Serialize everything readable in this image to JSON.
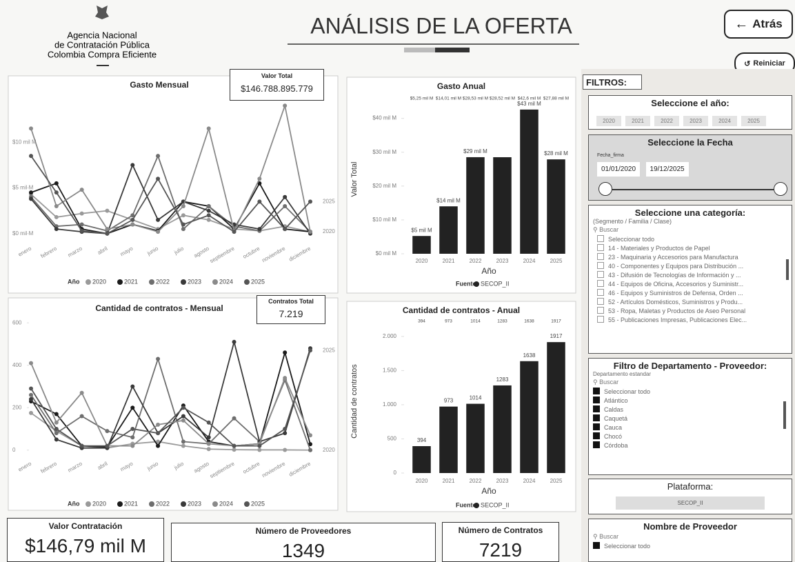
{
  "header": {
    "org_lines": [
      "Agencia Nacional",
      "de Contratación Pública",
      "Colombia Compra Eficiente"
    ],
    "title": "ANÁLISIS DE LA OFERTA",
    "back_button": "Atrás",
    "reset_button": "Reiniciar"
  },
  "kpis": {
    "valor_total": {
      "label": "Valor Total",
      "value": "$146.788.895.779"
    },
    "contratos_total": {
      "label": "Contratos Total",
      "value": "7.219"
    },
    "valor_contratacion": {
      "label": "Valor Contratación",
      "value": "$146,79 mil M"
    },
    "proveedores": {
      "label": "Número de Proveedores",
      "value": "1349"
    },
    "contratos": {
      "label": "Número de Contratos",
      "value": "7219"
    }
  },
  "filters": {
    "title": "FILTROS:",
    "year": {
      "title": "Seleccione el año:",
      "options": [
        "2020",
        "2021",
        "2022",
        "2023",
        "2024",
        "2025"
      ]
    },
    "date": {
      "title": "Seleccione la Fecha",
      "field": "Fecha_firma",
      "start": "01/01/2020",
      "end": "19/12/2025"
    },
    "category": {
      "title": "Seleccione una categoría:",
      "subtitle": "(Segmento / Familia / Clase)",
      "search": "Buscar",
      "items": [
        "Seleccionar todo",
        "14 - Materiales y Productos de Papel",
        "23 - Maquinaria y Accesorios para Manufactura",
        "40 - Componentes y Equipos para Distribución ...",
        "43 - Difusión de Tecnologías de Información y ...",
        "44 - Equipos de Oficina, Accesorios y Suministr...",
        "46 - Equipos y Suministros de Defensa, Orden ...",
        "52 - Artículos Domésticos, Suministros y Produ...",
        "53 - Ropa, Maletas y Productos de Aseo Personal",
        "55 - Publicaciones Impresas, Publicaciones Elec..."
      ]
    },
    "department": {
      "title": "Filtro de Departamento - Proveedor:",
      "field": "Departamento estandar",
      "search": "Buscar",
      "items": [
        "Seleccionar todo",
        "Atlántico",
        "Caldas",
        "Caquetá",
        "Cauca",
        "Chocó",
        "Córdoba"
      ]
    },
    "platform": {
      "title": "Plataforma:",
      "options": [
        "SECOP_II"
      ]
    },
    "provider": {
      "title": "Nombre de Proveedor",
      "search": "Buscar",
      "items": [
        "Seleccionar todo"
      ]
    }
  },
  "chart_data": [
    {
      "type": "line",
      "title": "Gasto Mensual",
      "categories": [
        "enero",
        "febrero",
        "marzo",
        "abril",
        "mayo",
        "junio",
        "julio",
        "agosto",
        "septiembre",
        "octubre",
        "noviembre",
        "diciembre"
      ],
      "legend_title": "Año",
      "series": [
        {
          "name": "2020",
          "color": "#9a9a9a",
          "end_label": true,
          "values": [
            4.3,
            1.8,
            2.2,
            2.5,
            1.5,
            0.5,
            2.0,
            1.5,
            0.5,
            0.3,
            0.8,
            0.2
          ]
        },
        {
          "name": "2021",
          "color": "#1a1a1a",
          "values": [
            4.5,
            5.5,
            0.5,
            0.0,
            1.0,
            0.3,
            3.5,
            3.0,
            0.5,
            5.5,
            0.5,
            0.2
          ]
        },
        {
          "name": "2022",
          "color": "#6e6e6e",
          "values": [
            4.0,
            0.8,
            1.0,
            0.3,
            2.0,
            8.5,
            0.5,
            3.0,
            0.8,
            0.3,
            3.0,
            0.2
          ]
        },
        {
          "name": "2023",
          "color": "#3a3a3a",
          "values": [
            3.8,
            0.5,
            0.2,
            0.0,
            7.5,
            1.5,
            3.5,
            2.5,
            1.0,
            0.5,
            4.0,
            0.0
          ]
        },
        {
          "name": "2024",
          "color": "#8a8a8a",
          "values": [
            11.5,
            3.0,
            4.8,
            0.5,
            1.0,
            0.2,
            3.0,
            11.5,
            0.3,
            6.0,
            14.0,
            0.2
          ]
        },
        {
          "name": "2025",
          "color": "#555555",
          "end_label": true,
          "values": [
            8.5,
            4.5,
            0.3,
            0.0,
            1.5,
            6.0,
            1.0,
            2.0,
            0.2,
            3.5,
            0.5,
            3.5
          ]
        }
      ],
      "ylim": [
        -1,
        15
      ],
      "yticks": [
        {
          "value": 0,
          "label": "$0 mil M"
        },
        {
          "value": 5,
          "label": "$5 mil M"
        },
        {
          "value": 10,
          "label": "$10 mil M"
        }
      ]
    },
    {
      "type": "bar",
      "title": "Gasto Anual",
      "categories": [
        "2020",
        "2021",
        "2022",
        "2023",
        "2024",
        "2025"
      ],
      "x_label": "Año",
      "y_label": "Valor Total",
      "legend_title": "Fuente",
      "series": [
        {
          "name": "SECOP_II",
          "color": "#222222",
          "values": [
            5.25,
            14.01,
            28.53,
            28.52,
            42.6,
            27.88
          ],
          "value_labels": [
            "$5 mil M",
            "$14 mil M",
            "$29 mil M",
            null,
            "$43 mil M",
            "$28 mil M"
          ],
          "top_labels": [
            "$5,25 mil M",
            "$14,01 mil M",
            "$28,53 mil M",
            "$28,52 mil M",
            "$42,6 mil M",
            "$27,88 mil M"
          ]
        }
      ],
      "ylim": [
        0,
        44
      ],
      "yticks": [
        {
          "value": 0,
          "label": "$0 mil M"
        },
        {
          "value": 10,
          "label": "$10 mil M"
        },
        {
          "value": 20,
          "label": "$20 mil M"
        },
        {
          "value": 30,
          "label": "$30 mil M"
        },
        {
          "value": 40,
          "label": "$40 mil M"
        }
      ]
    },
    {
      "type": "line",
      "title": "Cantidad de contratos - Mensual",
      "categories": [
        "enero",
        "febrero",
        "marzo",
        "abril",
        "mayo",
        "junio",
        "julio",
        "agosto",
        "septiembre",
        "octubre",
        "noviembre",
        "diciembre"
      ],
      "legend_title": "Año",
      "series": [
        {
          "name": "2020",
          "color": "#9a9a9a",
          "end_label": true,
          "values": [
            175,
            90,
            20,
            10,
            30,
            40,
            20,
            5,
            2,
            1,
            1,
            0
          ]
        },
        {
          "name": "2021",
          "color": "#1a1a1a",
          "values": [
            230,
            170,
            20,
            15,
            200,
            20,
            210,
            40,
            20,
            30,
            460,
            28
          ]
        },
        {
          "name": "2022",
          "color": "#6e6e6e",
          "values": [
            260,
            80,
            160,
            90,
            60,
            430,
            40,
            30,
            150,
            40,
            330,
            0
          ]
        },
        {
          "name": "2023",
          "color": "#3a3a3a",
          "values": [
            240,
            50,
            10,
            10,
            300,
            80,
            160,
            60,
            510,
            40,
            80,
            480
          ]
        },
        {
          "name": "2024",
          "color": "#8a8a8a",
          "values": [
            410,
            130,
            270,
            20,
            20,
            120,
            140,
            30,
            20,
            30,
            340,
            70
          ]
        },
        {
          "name": "2025",
          "color": "#555555",
          "end_label": true,
          "values": [
            290,
            100,
            20,
            20,
            100,
            80,
            200,
            130,
            20,
            20,
            100,
            470
          ]
        }
      ],
      "ylim": [
        -30,
        620
      ],
      "yticks": [
        0,
        200,
        400,
        600
      ]
    },
    {
      "type": "bar",
      "title": "Cantidad de contratos - Anual",
      "categories": [
        "2020",
        "2021",
        "2022",
        "2023",
        "2024",
        "2025"
      ],
      "x_label": "Año",
      "y_label": "Cantidad de contratos",
      "legend_title": "Fuente",
      "series": [
        {
          "name": "SECOP_II",
          "color": "#222222",
          "values": [
            394,
            973,
            1014,
            1283,
            1638,
            1917
          ]
        }
      ],
      "ylim": [
        0,
        2100
      ],
      "yticks": [
        0,
        500,
        {
          "value": 1000,
          "label": "1.000"
        },
        {
          "value": 1500,
          "label": "1.500"
        },
        {
          "value": 2000,
          "label": "2.000"
        }
      ]
    }
  ]
}
